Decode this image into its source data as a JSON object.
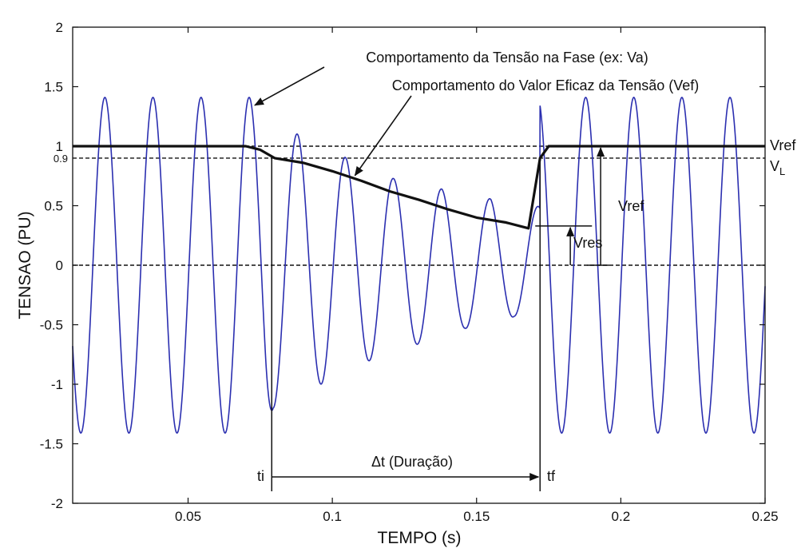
{
  "chart_data": {
    "type": "line",
    "xlabel": "TEMPO (s)",
    "ylabel": "TENSAO (PU)",
    "xlim": [
      0.01,
      0.25
    ],
    "ylim": [
      -2,
      2
    ],
    "x_ticks": [
      "0.05",
      "0.1",
      "0.15",
      "0.2",
      "0.25"
    ],
    "x_tick_values": [
      0.05,
      0.1,
      0.15,
      0.2,
      0.25
    ],
    "y_ticks": [
      "2",
      "1.5",
      "1",
      "0.5",
      "0",
      "-0.5",
      "-1",
      "-1.5",
      "-2"
    ],
    "y_tick_values": [
      2,
      1.5,
      1,
      0.5,
      0,
      -0.5,
      -1,
      -1.5,
      -2
    ],
    "extra_y_tick": {
      "label": "0.9",
      "value": 0.9
    },
    "grid": false,
    "colors": {
      "waveform": "#2b2fb0",
      "rms": "#111111"
    },
    "waveform": {
      "frequency_hz": 60,
      "amplitude_pre": 1.41,
      "amplitude_post": 1.41,
      "peak_values_during_sag": [
        {
          "x": 0.088,
          "y": 1.1
        },
        {
          "x": 0.096,
          "y": -1.0
        },
        {
          "x": 0.105,
          "y": 0.9
        },
        {
          "x": 0.113,
          "y": -0.8
        },
        {
          "x": 0.121,
          "y": 0.73
        },
        {
          "x": 0.13,
          "y": -0.66
        },
        {
          "x": 0.138,
          "y": 0.64
        },
        {
          "x": 0.146,
          "y": -0.53
        },
        {
          "x": 0.155,
          "y": 0.56
        },
        {
          "x": 0.163,
          "y": -0.43
        }
      ],
      "sag_start": 0.079,
      "sag_end": 0.172,
      "trough_at_sag_start": -1.2
    },
    "rms": [
      {
        "x": 0.01,
        "y": 1.0
      },
      {
        "x": 0.07,
        "y": 1.0
      },
      {
        "x": 0.075,
        "y": 0.97
      },
      {
        "x": 0.08,
        "y": 0.9
      },
      {
        "x": 0.09,
        "y": 0.86
      },
      {
        "x": 0.1,
        "y": 0.79
      },
      {
        "x": 0.11,
        "y": 0.71
      },
      {
        "x": 0.12,
        "y": 0.62
      },
      {
        "x": 0.13,
        "y": 0.55
      },
      {
        "x": 0.14,
        "y": 0.47
      },
      {
        "x": 0.15,
        "y": 0.4
      },
      {
        "x": 0.16,
        "y": 0.36
      },
      {
        "x": 0.168,
        "y": 0.31
      },
      {
        "x": 0.172,
        "y": 0.9
      },
      {
        "x": 0.175,
        "y": 1.0
      },
      {
        "x": 0.25,
        "y": 1.0
      }
    ],
    "reference_lines": [
      {
        "y": 1.0,
        "label": "Vref"
      },
      {
        "y": 0.9,
        "label": "V",
        "subscript": "L"
      },
      {
        "y": 0.0,
        "label": ""
      }
    ],
    "markers": {
      "ti": {
        "x": 0.079,
        "label": "ti"
      },
      "tf": {
        "x": 0.172,
        "label": "tf"
      },
      "duration_label": "Δt (Duração)",
      "vres": {
        "x": 0.18,
        "y": 0.33,
        "label": "Vres"
      },
      "vref_arrow": {
        "x": 0.193,
        "y": 1.0,
        "label": "Vref"
      }
    },
    "annotations": [
      {
        "text": "Comportamento da Tensão na Fase (ex: Va)",
        "target": {
          "x": 0.072,
          "y": 1.33
        }
      },
      {
        "text": "Comportamento do Valor Eficaz da Tensão (Vef)",
        "target": {
          "x": 0.107,
          "y": 0.74
        }
      }
    ]
  }
}
